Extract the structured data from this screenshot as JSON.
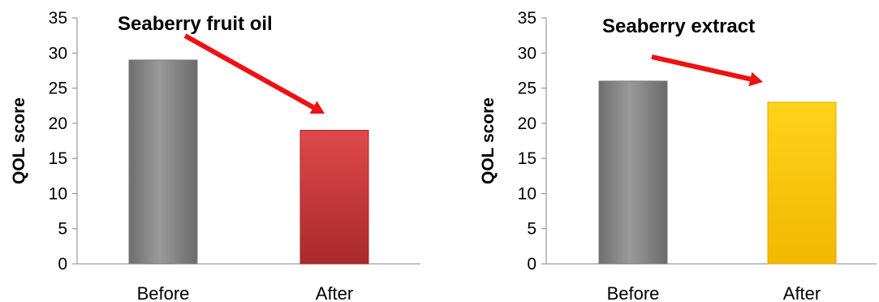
{
  "chart_data": [
    {
      "type": "bar",
      "title": "Seaberry fruit oil",
      "xlabel": "",
      "ylabel": "QOL score",
      "categories": [
        "Before",
        "After"
      ],
      "values": [
        29,
        19
      ],
      "ylim": [
        0,
        35
      ],
      "yticks": [
        0,
        5,
        10,
        15,
        20,
        25,
        30,
        35
      ],
      "bar_colors": [
        "#8a8a8a",
        "#c8383a"
      ],
      "annotation": "red arrow pointing downward from Before to After",
      "grid": false,
      "legend": "none"
    },
    {
      "type": "bar",
      "title": "Seaberry extract",
      "xlabel": "",
      "ylabel": "QOL score",
      "categories": [
        "Before",
        "After"
      ],
      "values": [
        26,
        23
      ],
      "ylim": [
        0,
        35
      ],
      "yticks": [
        0,
        5,
        10,
        15,
        20,
        25,
        30,
        35
      ],
      "bar_colors": [
        "#8a8a8a",
        "#f5c000"
      ],
      "annotation": "red arrow pointing downward from Before to After",
      "grid": false,
      "legend": "none"
    }
  ]
}
